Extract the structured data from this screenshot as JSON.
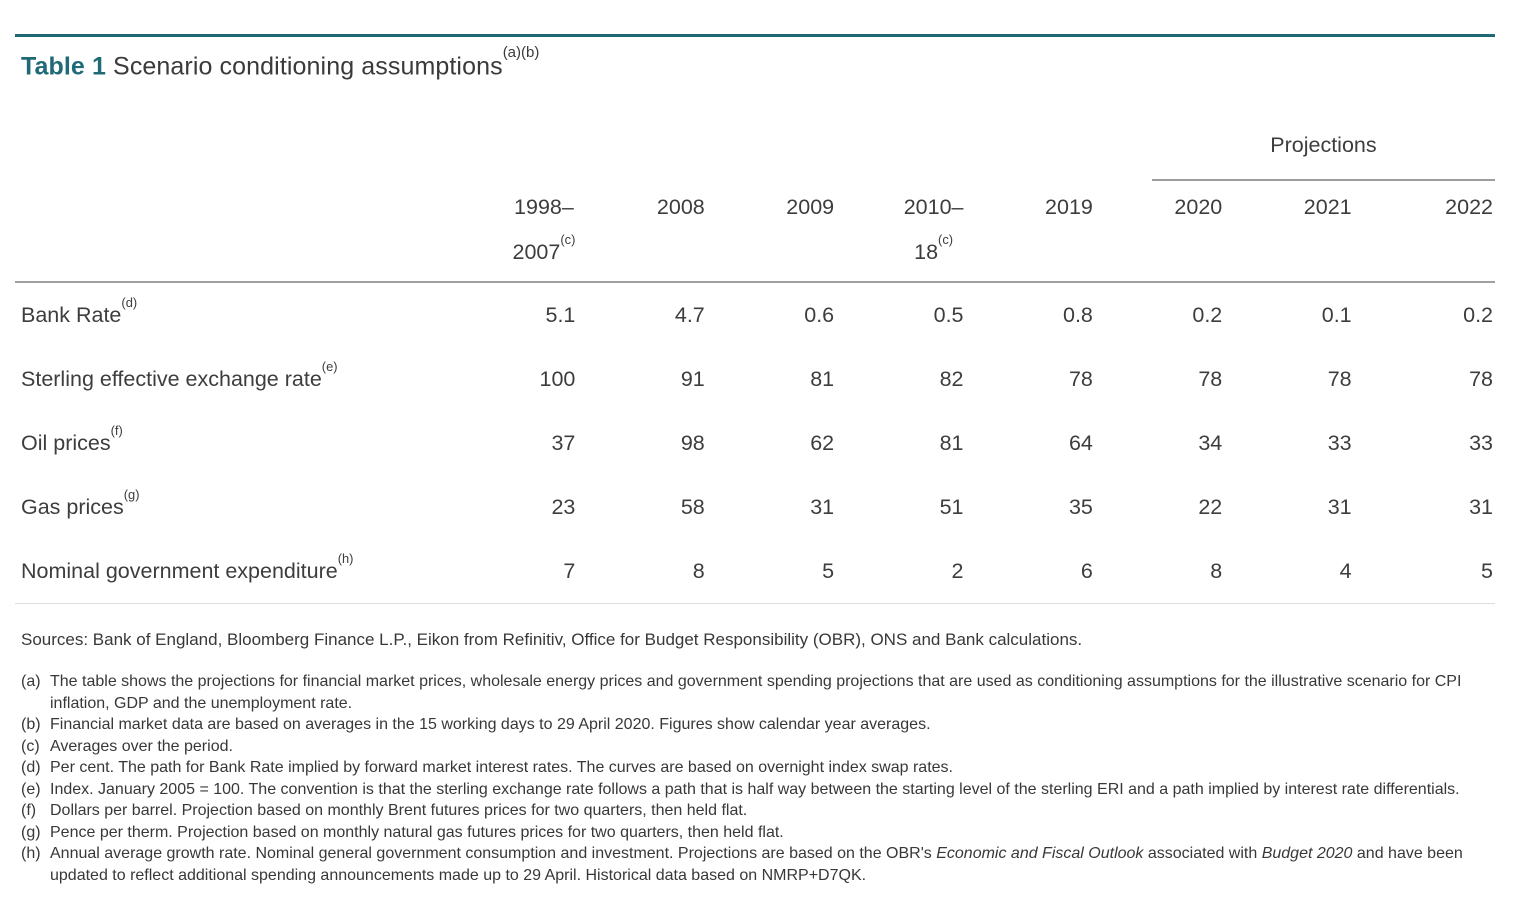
{
  "title": {
    "prefix": "Table 1",
    "text": " Scenario conditioning assumptions",
    "footnote_refs": "(a)(b)"
  },
  "colors": {
    "accent_teal": "#1f6a76",
    "body_text": "#3d3d3d",
    "rule_gray": "#9d9d9d",
    "rule_light": "#dddddd"
  },
  "table": {
    "projections_label": "Projections",
    "columns": [
      {
        "line1": "1998–",
        "line2": "2007",
        "sup": "(c)"
      },
      {
        "line1": "2008"
      },
      {
        "line1": "2009"
      },
      {
        "line1": "2010–",
        "line2": "18",
        "sup": "(c)"
      },
      {
        "line1": "2019"
      },
      {
        "line1": "2020"
      },
      {
        "line1": "2021"
      },
      {
        "line1": "2022"
      }
    ],
    "projection_columns": [
      "2020",
      "2021",
      "2022"
    ],
    "rows": [
      {
        "label": "Bank Rate",
        "sup": "(d)",
        "values": [
          "5.1",
          "4.7",
          "0.6",
          "0.5",
          "0.8",
          "0.2",
          "0.1",
          "0.2"
        ]
      },
      {
        "label": "Sterling effective exchange rate",
        "sup": "(e)",
        "values": [
          "100",
          "91",
          "81",
          "82",
          "78",
          "78",
          "78",
          "78"
        ]
      },
      {
        "label": "Oil prices",
        "sup": "(f)",
        "values": [
          "37",
          "98",
          "62",
          "81",
          "64",
          "34",
          "33",
          "33"
        ]
      },
      {
        "label": "Gas prices",
        "sup": "(g)",
        "values": [
          "23",
          "58",
          "31",
          "51",
          "35",
          "22",
          "31",
          "31"
        ]
      },
      {
        "label": "Nominal government expenditure",
        "sup": "(h)",
        "values": [
          "7",
          "8",
          "5",
          "2",
          "6",
          "8",
          "4",
          "5"
        ]
      }
    ]
  },
  "sources": "Sources: Bank of England, Bloomberg Finance L.P., Eikon from Refinitiv, Office for Budget Responsibility (OBR), ONS and Bank calculations.",
  "footnotes": [
    {
      "label": "(a)",
      "text": "The table shows the projections for financial market prices, wholesale energy prices and government spending projections that are used as conditioning assumptions for the illustrative scenario for CPI inflation, GDP and the unemployment rate."
    },
    {
      "label": "(b)",
      "text": "Financial market data are based on averages in the 15 working days to 29 April 2020. Figures show calendar year averages."
    },
    {
      "label": "(c)",
      "text": "Averages over the period."
    },
    {
      "label": "(d)",
      "text": "Per cent. The path for Bank Rate implied by forward market interest rates. The curves are based on overnight index swap rates."
    },
    {
      "label": "(e)",
      "text": "Index. January 2005 = 100. The convention is that the sterling exchange rate follows a path that is half way between the starting level of the sterling ERI and a path implied by interest rate differentials."
    },
    {
      "label": "(f)",
      "text": "Dollars per barrel. Projection based on monthly Brent futures prices for two quarters, then held flat."
    },
    {
      "label": "(g)",
      "text": "Pence per therm. Projection based on monthly natural gas futures prices for two quarters, then held flat."
    },
    {
      "label": "(h)",
      "segments": [
        {
          "text": "Annual average growth rate. Nominal general government consumption and investment. Projections are based on the OBR's ",
          "italic": false
        },
        {
          "text": "Economic and Fiscal Outlook",
          "italic": true
        },
        {
          "text": " associated with ",
          "italic": false
        },
        {
          "text": "Budget 2020",
          "italic": true
        },
        {
          "text": " and have been updated to reflect additional spending announcements made up to 29 April. Historical data based on NMRP+D7QK.",
          "italic": false
        }
      ]
    }
  ]
}
